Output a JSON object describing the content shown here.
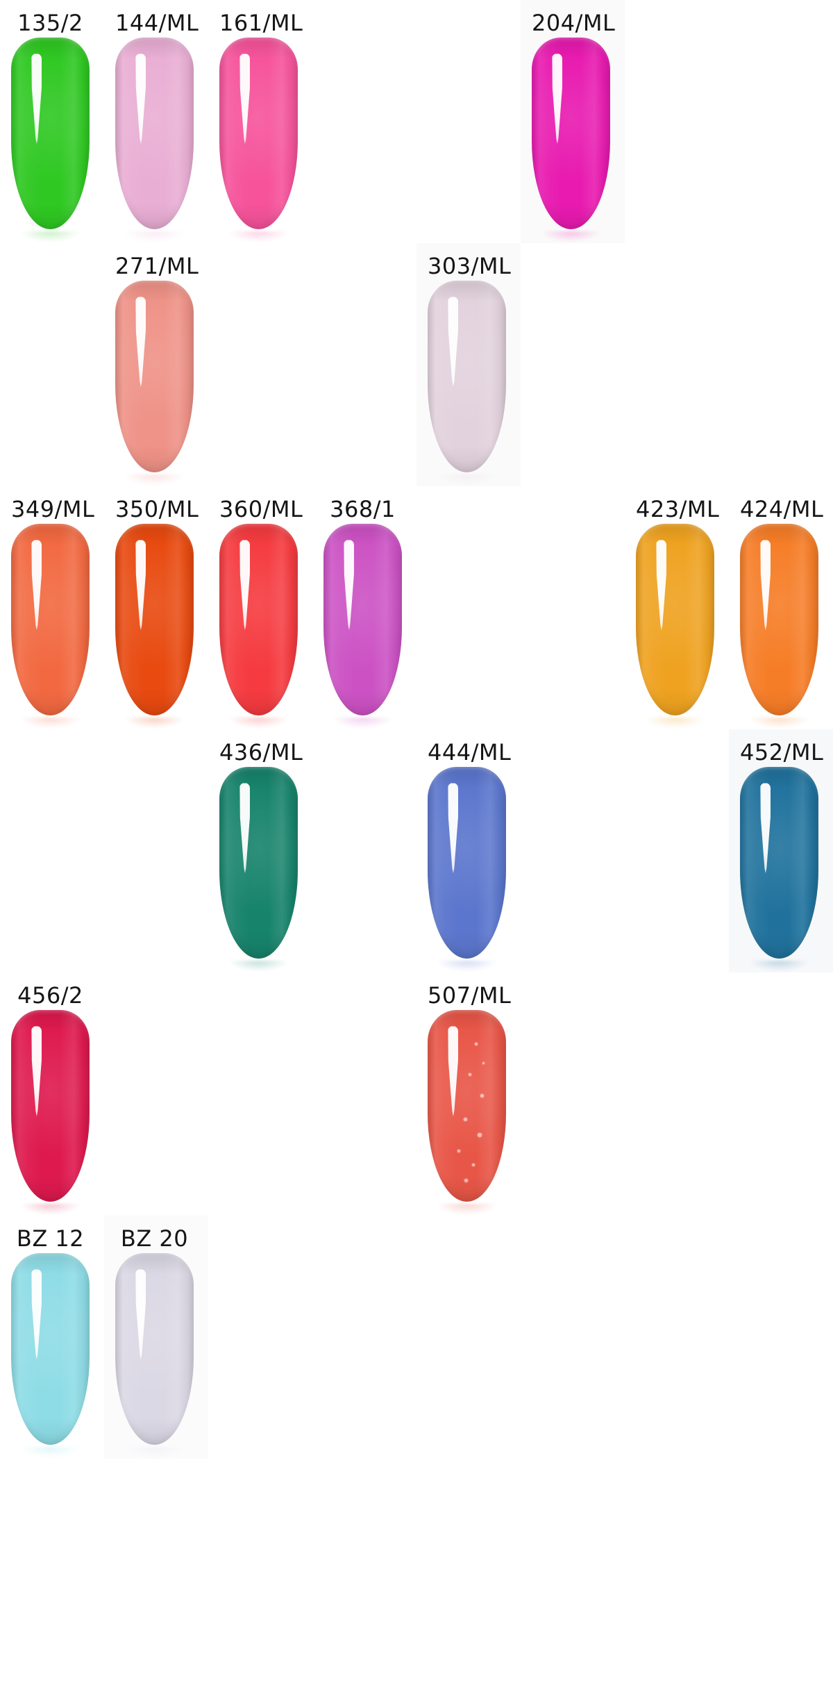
{
  "page": {
    "background_color": "#ffffff",
    "label_text_color": "#151515",
    "description": "Nail polish color swatch chart: grid of nail-tip samples with shade codes"
  },
  "board": {
    "rows": 6,
    "cols": 8,
    "swatches": [
      {
        "label": "135/2",
        "row": 1,
        "col": 1,
        "color": "#2fc822"
      },
      {
        "label": "144/ML",
        "row": 1,
        "col": 2,
        "color": "#e9aed4"
      },
      {
        "label": "161/ML",
        "row": 1,
        "col": 3,
        "color": "#f6539b"
      },
      {
        "label": "204/ML",
        "row": 1,
        "col": 6,
        "color": "#e81ab0",
        "bg": "#fafafa"
      },
      {
        "label": "271/ML",
        "row": 2,
        "col": 2,
        "color": "#ef9287"
      },
      {
        "label": "303/ML",
        "row": 2,
        "col": 5,
        "color": "#e2d2dd",
        "bg": "#fafafa"
      },
      {
        "label": "349/ML",
        "row": 3,
        "col": 1,
        "color": "#f26941"
      },
      {
        "label": "350/ML",
        "row": 3,
        "col": 2,
        "color": "#e84a10"
      },
      {
        "label": "360/ML",
        "row": 3,
        "col": 3,
        "color": "#f53b40"
      },
      {
        "label": "368/1",
        "row": 3,
        "col": 4,
        "color": "#cc52c4"
      },
      {
        "label": "423/ML",
        "row": 3,
        "col": 7,
        "color": "#efa220"
      },
      {
        "label": "424/ML",
        "row": 3,
        "col": 8,
        "color": "#f67d27"
      },
      {
        "label": "436/ML",
        "row": 4,
        "col": 3,
        "color": "#17836b"
      },
      {
        "label": "444/ML",
        "row": 4,
        "col": 5,
        "color": "#5b76cd"
      },
      {
        "label": "452/ML",
        "row": 4,
        "col": 8,
        "color": "#20729d",
        "bg": "#f7f8fa"
      },
      {
        "label": "456/2",
        "row": 5,
        "col": 1,
        "color": "#de194e"
      },
      {
        "label": "507/ML",
        "row": 5,
        "col": 5,
        "color": "#e85647",
        "glitter": true
      },
      {
        "label": "BZ 12",
        "row": 6,
        "col": 1,
        "color": "#8edce6"
      },
      {
        "label": "BZ 20",
        "row": 6,
        "col": 2,
        "color": "#dbd8e5",
        "bg": "#fbfbfc"
      }
    ]
  }
}
